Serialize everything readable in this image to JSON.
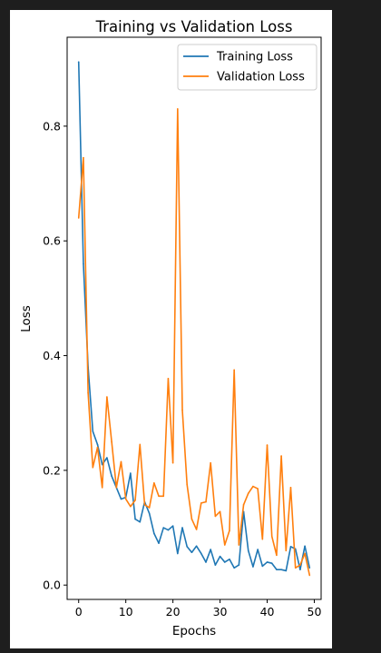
{
  "chart_data": {
    "type": "line",
    "title": "Training vs Validation Loss",
    "xlabel": "Epochs",
    "ylabel": "Loss",
    "xlim": [
      -2.45,
      51.45
    ],
    "ylim": [
      -0.025,
      0.955
    ],
    "xticks": [
      0,
      10,
      20,
      30,
      40,
      50
    ],
    "yticks": [
      0.0,
      0.2,
      0.4,
      0.6,
      0.8
    ],
    "ytick_labels": [
      "0.0",
      "0.2",
      "0.4",
      "0.6",
      "0.8"
    ],
    "grid": false,
    "legend": "top-right",
    "x": [
      0,
      1,
      2,
      3,
      4,
      5,
      6,
      7,
      8,
      9,
      10,
      11,
      12,
      13,
      14,
      15,
      16,
      17,
      18,
      19,
      20,
      21,
      22,
      23,
      24,
      25,
      26,
      27,
      28,
      29,
      30,
      31,
      32,
      33,
      34,
      35,
      36,
      37,
      38,
      39,
      40,
      41,
      42,
      43,
      44,
      45,
      46,
      47,
      48,
      49
    ],
    "series": [
      {
        "name": "Training Loss",
        "color": "#1f77b4",
        "values": [
          0.912,
          0.56,
          0.38,
          0.268,
          0.245,
          0.21,
          0.222,
          0.19,
          0.17,
          0.15,
          0.153,
          0.195,
          0.115,
          0.11,
          0.145,
          0.125,
          0.09,
          0.073,
          0.1,
          0.096,
          0.103,
          0.055,
          0.1,
          0.067,
          0.057,
          0.068,
          0.055,
          0.04,
          0.062,
          0.035,
          0.05,
          0.04,
          0.045,
          0.03,
          0.035,
          0.128,
          0.06,
          0.032,
          0.062,
          0.033,
          0.04,
          0.038,
          0.027,
          0.027,
          0.025,
          0.067,
          0.063,
          0.027,
          0.068,
          0.03
        ]
      },
      {
        "name": "Validation Loss",
        "color": "#ff7f0e",
        "values": [
          0.64,
          0.745,
          0.335,
          0.205,
          0.24,
          0.17,
          0.328,
          0.25,
          0.17,
          0.215,
          0.15,
          0.137,
          0.148,
          0.245,
          0.14,
          0.135,
          0.178,
          0.155,
          0.155,
          0.36,
          0.213,
          0.83,
          0.305,
          0.175,
          0.115,
          0.097,
          0.143,
          0.145,
          0.213,
          0.12,
          0.128,
          0.07,
          0.095,
          0.375,
          0.07,
          0.14,
          0.16,
          0.172,
          0.168,
          0.08,
          0.244,
          0.085,
          0.052,
          0.225,
          0.06,
          0.17,
          0.03,
          0.035,
          0.055,
          0.017
        ]
      }
    ]
  }
}
